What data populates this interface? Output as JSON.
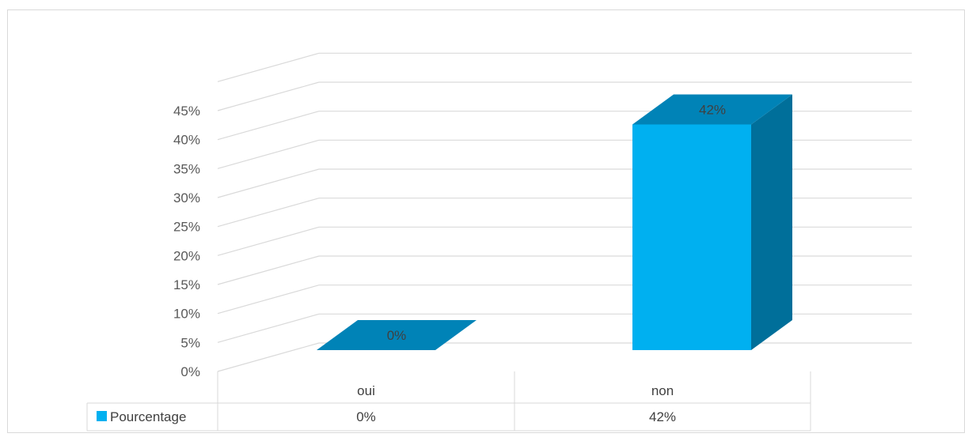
{
  "chart_data": {
    "type": "bar",
    "categories": [
      "oui",
      "non"
    ],
    "series": [
      {
        "name": "Pourcentage",
        "values": [
          0,
          42
        ]
      }
    ],
    "y_tick_labels": [
      "0%",
      "5%",
      "10%",
      "15%",
      "20%",
      "25%",
      "30%",
      "35%",
      "40%",
      "45%"
    ],
    "data_labels": [
      "0%",
      "42%"
    ],
    "table": {
      "row_label": "Pourcentage",
      "values": [
        "0%",
        "42%"
      ]
    },
    "ylim": [
      0,
      45
    ],
    "grid": true,
    "legend": "data-table",
    "three_d": true,
    "colors": {
      "front": "#00b0f0",
      "top": "#0083b7",
      "side": "#006f9a",
      "grid": "#d9d9d9",
      "text": "#595959"
    }
  }
}
